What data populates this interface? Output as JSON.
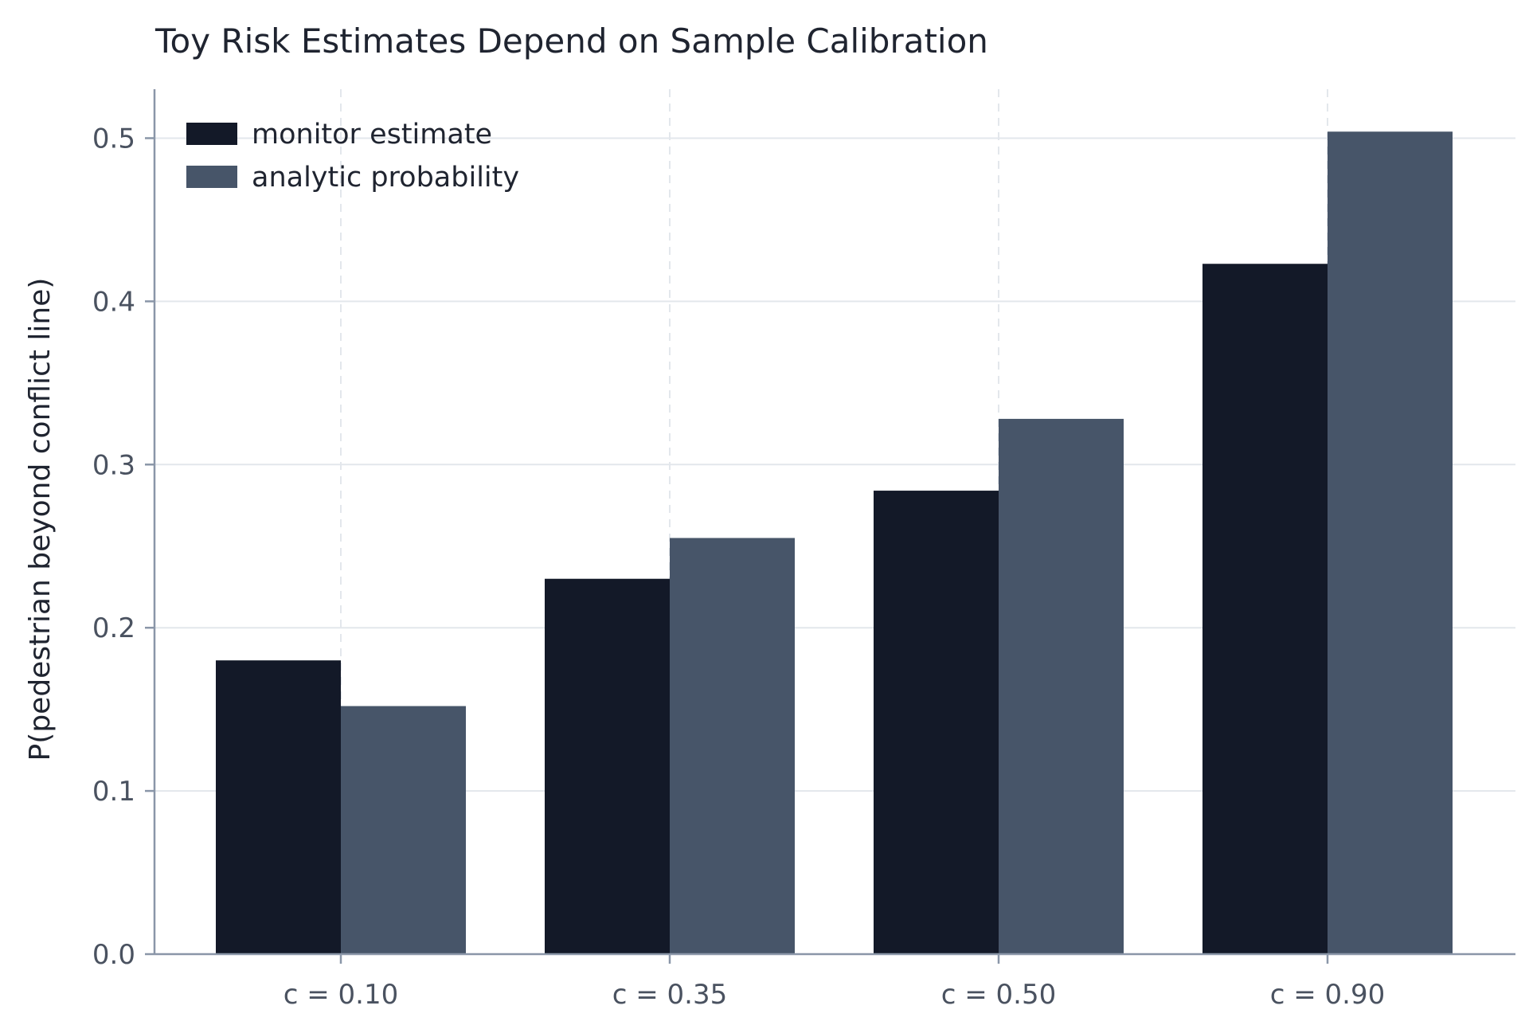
{
  "chart_data": {
    "type": "bar",
    "title": "Toy Risk Estimates Depend on Sample Calibration",
    "xlabel": "",
    "ylabel": "P(pedestrian beyond conflict line)",
    "categories": [
      "c = 0.10",
      "c = 0.35",
      "c = 0.50",
      "c = 0.90"
    ],
    "series": [
      {
        "name": "monitor estimate",
        "values": [
          0.18,
          0.23,
          0.284,
          0.423
        ],
        "color": "#131928"
      },
      {
        "name": "analytic probability",
        "values": [
          0.152,
          0.255,
          0.328,
          0.504
        ],
        "color": "#475569"
      }
    ],
    "ylim": [
      0,
      0.53
    ],
    "yticks": [
      0.0,
      0.1,
      0.2,
      0.3,
      0.4,
      0.5
    ],
    "ytick_labels": [
      "0.0",
      "0.1",
      "0.2",
      "0.3",
      "0.4",
      "0.5"
    ],
    "grid": "on",
    "legend_position": "top-left"
  }
}
